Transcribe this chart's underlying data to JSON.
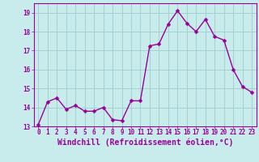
{
  "x": [
    0,
    1,
    2,
    3,
    4,
    5,
    6,
    7,
    8,
    9,
    10,
    11,
    12,
    13,
    14,
    15,
    16,
    17,
    18,
    19,
    20,
    21,
    22,
    23
  ],
  "y": [
    13.1,
    14.3,
    14.5,
    13.9,
    14.1,
    13.8,
    13.8,
    14.0,
    13.35,
    13.3,
    14.35,
    14.35,
    17.25,
    17.35,
    18.4,
    19.1,
    18.45,
    18.0,
    18.65,
    17.75,
    17.55,
    16.0,
    15.1,
    14.8
  ],
  "line_color": "#990099",
  "marker_color": "#990099",
  "bg_color": "#c8ecec",
  "grid_color": "#a0cccc",
  "xlabel": "Windchill (Refroidissement éolien,°C)",
  "xlim": [
    -0.5,
    23.5
  ],
  "ylim": [
    13.0,
    19.5
  ],
  "yticks": [
    13,
    14,
    15,
    16,
    17,
    18,
    19
  ],
  "xticks": [
    0,
    1,
    2,
    3,
    4,
    5,
    6,
    7,
    8,
    9,
    10,
    11,
    12,
    13,
    14,
    15,
    16,
    17,
    18,
    19,
    20,
    21,
    22,
    23
  ],
  "tick_label_fontsize": 5.5,
  "xlabel_fontsize": 7.0,
  "line_width": 1.0,
  "marker_size": 2.5
}
